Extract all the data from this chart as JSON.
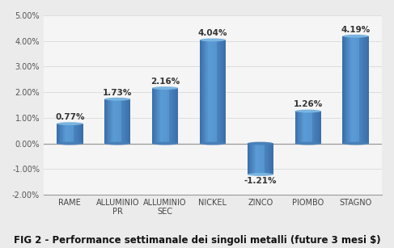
{
  "categories": [
    "RAME",
    "ALLUMINIO\nPR",
    "ALLUMINIO\nSEC",
    "NICKEL",
    "ZINCO",
    "PIOMBO",
    "STAGNO"
  ],
  "values": [
    0.77,
    1.73,
    2.16,
    4.04,
    -1.21,
    1.26,
    4.19
  ],
  "labels": [
    "0.77%",
    "1.73%",
    "2.16%",
    "4.04%",
    "-1.21%",
    "1.26%",
    "4.19%"
  ],
  "color_left": "#3A6EA8",
  "color_mid": "#5B9BD5",
  "color_right": "#4A85C0",
  "color_top": "#7AB4E0",
  "color_cap_dark": "#4A80B8",
  "ylim": [
    -2.0,
    5.0
  ],
  "yticks": [
    -2.0,
    -1.0,
    0.0,
    1.0,
    2.0,
    3.0,
    4.0,
    5.0
  ],
  "ytick_labels": [
    "-2.00%",
    "-1.00%",
    "0.00%",
    "1.00%",
    "2.00%",
    "3.00%",
    "4.00%",
    "5.00%"
  ],
  "title": "FIG 2 - Performance settimanale dei singoli metalli (future 3 mesi $)",
  "title_fontsize": 8.5,
  "background_color": "#EBEBEB",
  "plot_bg_color": "#F5F5F5",
  "grid_color": "#DDDDDD",
  "label_fontsize": 7.5,
  "tick_fontsize": 7.0,
  "bar_width": 0.55
}
